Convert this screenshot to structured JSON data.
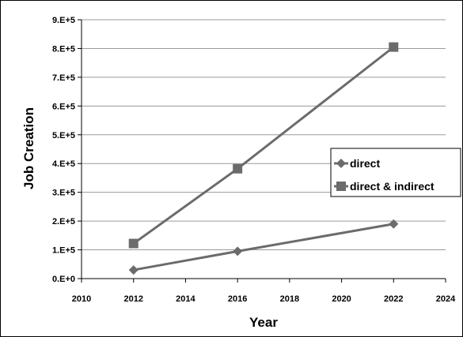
{
  "chart_data": {
    "type": "line",
    "title": "",
    "xlabel": "Year",
    "ylabel": "Job Creation",
    "xlim": [
      2010,
      2024
    ],
    "ylim": [
      0,
      900000
    ],
    "x_ticks": [
      "2010",
      "2012",
      "2014",
      "2016",
      "2018",
      "2020",
      "2022",
      "2024"
    ],
    "y_ticks": [
      "0.E+0",
      "1.E+5",
      "2.E+5",
      "3.E+5",
      "4.E+5",
      "5.E+5",
      "6.E+5",
      "7.E+5",
      "8.E+5",
      "9.E+5"
    ],
    "grid": "horizontal",
    "legend_position": "right",
    "series": [
      {
        "name": "direct",
        "marker": "diamond",
        "color": "#6b6b6b",
        "x": [
          2012,
          2016,
          2022
        ],
        "y": [
          30000,
          95000,
          190000
        ]
      },
      {
        "name": "direct & indirect",
        "marker": "square",
        "color": "#6b6b6b",
        "x": [
          2012,
          2016,
          2022
        ],
        "y": [
          122000,
          382000,
          805000
        ]
      }
    ]
  }
}
